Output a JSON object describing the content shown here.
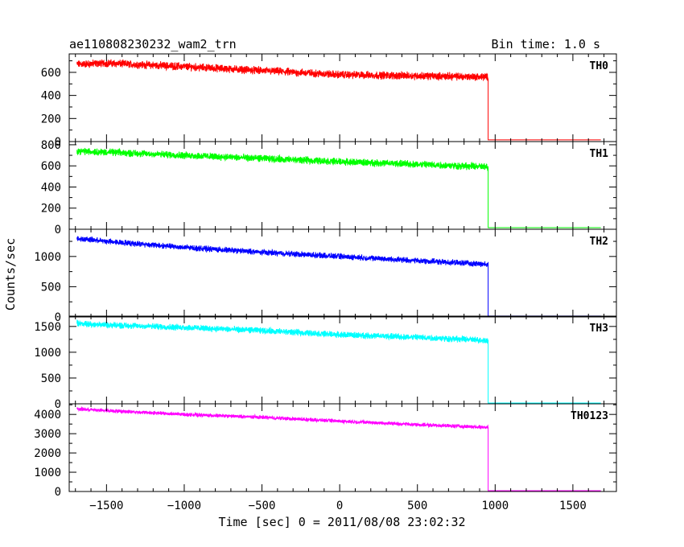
{
  "header": {
    "title": "ae110808230232_wam2_trn",
    "bin_time": "Bin time: 1.0 s"
  },
  "axes": {
    "xlabel": "Time [sec] 0 = 2011/08/08 23:02:32",
    "ylabel": "Counts/sec"
  },
  "chart_data": {
    "type": "line",
    "title": "ae110808230232_wam2_trn",
    "xlabel": "Time [sec] 0 = 2011/08/08 23:02:32",
    "ylabel": "Counts/sec",
    "xlim": [
      -1740,
      1780
    ],
    "xticks": [
      -1500,
      -1000,
      -500,
      0,
      500,
      1000,
      1500
    ],
    "xtick_labels": [
      "−1500",
      "−1000",
      "−500",
      "0",
      "500",
      "1000",
      "1500"
    ],
    "bin_time_s": 1.0,
    "data_x_range": [
      -1690,
      1680
    ],
    "dropout_time": 955,
    "grid": false,
    "legend": "none",
    "panels": [
      {
        "name": "TH0",
        "color": "#ff0000",
        "ylim": [
          0,
          760
        ],
        "yticks": [
          0,
          200,
          400,
          600
        ],
        "x": [
          -1690,
          -1500,
          -1000,
          -500,
          0,
          500,
          950
        ],
        "y": [
          670,
          680,
          650,
          615,
          580,
          570,
          560
        ],
        "noise": 25,
        "after_dropout": 15
      },
      {
        "name": "TH1",
        "color": "#00ff00",
        "ylim": [
          0,
          830
        ],
        "yticks": [
          0,
          200,
          400,
          600,
          800
        ],
        "x": [
          -1690,
          -1500,
          -1000,
          -500,
          0,
          500,
          950
        ],
        "y": [
          740,
          730,
          700,
          670,
          640,
          615,
          590
        ],
        "noise": 25,
        "after_dropout": 15
      },
      {
        "name": "TH2",
        "color": "#0000ff",
        "ylim": [
          0,
          1450
        ],
        "yticks": [
          0,
          500,
          1000
        ],
        "x": [
          -1690,
          -1500,
          -1000,
          -500,
          0,
          500,
          950
        ],
        "y": [
          1300,
          1250,
          1150,
          1070,
          1000,
          930,
          870
        ],
        "noise": 35,
        "after_dropout": 15
      },
      {
        "name": "TH3",
        "color": "#00ffff",
        "ylim": [
          0,
          1700
        ],
        "yticks": [
          0,
          500,
          1000,
          1500
        ],
        "x": [
          -1690,
          -1500,
          -1000,
          -500,
          0,
          500,
          950
        ],
        "y": [
          1560,
          1530,
          1480,
          1420,
          1340,
          1290,
          1230
        ],
        "noise": 45,
        "after_dropout": 15
      },
      {
        "name": "TH0123",
        "color": "#ff00ff",
        "ylim": [
          0,
          4550
        ],
        "yticks": [
          0,
          1000,
          2000,
          3000,
          4000
        ],
        "x": [
          -1690,
          -1500,
          -1000,
          -500,
          0,
          500,
          950
        ],
        "y": [
          4280,
          4200,
          4000,
          3850,
          3650,
          3470,
          3330
        ],
        "noise": 70,
        "after_dropout": 40
      }
    ]
  }
}
